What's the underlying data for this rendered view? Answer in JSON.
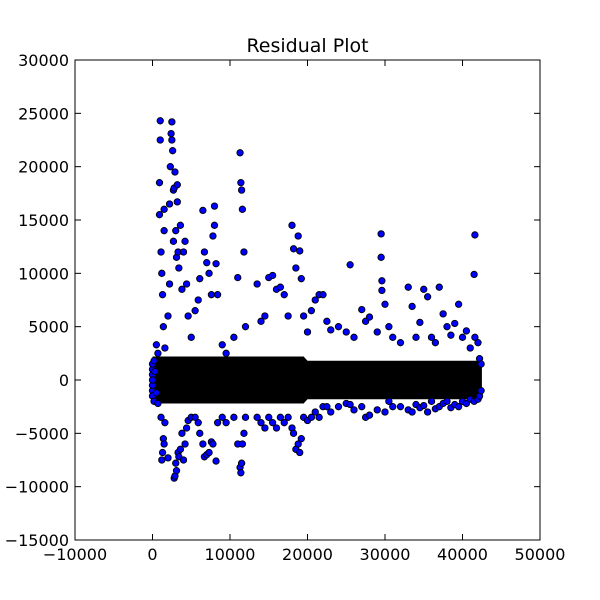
{
  "chart_data": {
    "type": "scatter",
    "title": "Residual Plot",
    "xlabel": "",
    "ylabel": "",
    "xlim": [
      -10000,
      50000
    ],
    "ylim": [
      -15000,
      30000
    ],
    "x_ticks": [
      -10000,
      0,
      10000,
      20000,
      30000,
      40000,
      50000
    ],
    "y_ticks": [
      -15000,
      -10000,
      -5000,
      0,
      5000,
      10000,
      15000,
      20000,
      25000,
      30000
    ],
    "grid": false,
    "legend": "none",
    "marker_color": "#0000ff",
    "marker_edge_color": "#000000",
    "series": [
      {
        "points": [
          [
            0,
            1000
          ],
          [
            0,
            -1000
          ],
          [
            0,
            500
          ],
          [
            0,
            -500
          ],
          [
            0,
            0
          ],
          [
            0,
            1500
          ],
          [
            0,
            -1500
          ],
          [
            200,
            1800
          ],
          [
            200,
            -2000
          ],
          [
            300,
            800
          ],
          [
            500,
            3300
          ],
          [
            500,
            -1200
          ],
          [
            700,
            2500
          ],
          [
            700,
            -2200
          ],
          [
            900,
            18500
          ],
          [
            900,
            15500
          ],
          [
            1000,
            22500
          ],
          [
            1000,
            24300
          ],
          [
            1100,
            12000
          ],
          [
            1100,
            -3500
          ],
          [
            1200,
            10000
          ],
          [
            1200,
            -7500
          ],
          [
            1300,
            8000
          ],
          [
            1300,
            -6800
          ],
          [
            1400,
            5000
          ],
          [
            1400,
            -5500
          ],
          [
            1500,
            14000
          ],
          [
            1500,
            16000
          ],
          [
            1500,
            -6000
          ],
          [
            1600,
            3000
          ],
          [
            1600,
            -4000
          ],
          [
            2000,
            6000
          ],
          [
            2000,
            -7300
          ],
          [
            2200,
            9000
          ],
          [
            2200,
            16500
          ],
          [
            2300,
            20000
          ],
          [
            2400,
            23100
          ],
          [
            2500,
            24200
          ],
          [
            2500,
            22500
          ],
          [
            2600,
            21500
          ],
          [
            2700,
            17800
          ],
          [
            2700,
            13000
          ],
          [
            2800,
            18000
          ],
          [
            2800,
            -9200
          ],
          [
            2900,
            19500
          ],
          [
            2900,
            -9000
          ],
          [
            3000,
            14000
          ],
          [
            3000,
            -7800
          ],
          [
            3100,
            11500
          ],
          [
            3100,
            -8500
          ],
          [
            3200,
            16700
          ],
          [
            3200,
            18300
          ],
          [
            3300,
            12000
          ],
          [
            3300,
            -6800
          ],
          [
            3400,
            10500
          ],
          [
            3400,
            -7200
          ],
          [
            3600,
            14500
          ],
          [
            3600,
            -6500
          ],
          [
            3800,
            8500
          ],
          [
            3800,
            -5000
          ],
          [
            4000,
            12000
          ],
          [
            4000,
            -7500
          ],
          [
            4200,
            13000
          ],
          [
            4200,
            -6000
          ],
          [
            4400,
            9000
          ],
          [
            4400,
            -4500
          ],
          [
            4600,
            6000
          ],
          [
            4600,
            -3800
          ],
          [
            5000,
            4000
          ],
          [
            5000,
            -3500
          ],
          [
            5500,
            6500
          ],
          [
            5500,
            -3500
          ],
          [
            5900,
            7500
          ],
          [
            5900,
            -4000
          ],
          [
            6100,
            9500
          ],
          [
            6100,
            -5000
          ],
          [
            6500,
            15900
          ],
          [
            6500,
            -6000
          ],
          [
            6700,
            12000
          ],
          [
            6700,
            -7200
          ],
          [
            7000,
            11000
          ],
          [
            7000,
            -7000
          ],
          [
            7300,
            10000
          ],
          [
            7300,
            -6800
          ],
          [
            7600,
            8000
          ],
          [
            7600,
            -5800
          ],
          [
            7800,
            13500
          ],
          [
            7800,
            -6000
          ],
          [
            8000,
            16300
          ],
          [
            8000,
            14500
          ],
          [
            8200,
            10900
          ],
          [
            8200,
            -7600
          ],
          [
            8400,
            8000
          ],
          [
            8400,
            -4000
          ],
          [
            9000,
            3300
          ],
          [
            9000,
            -3500
          ],
          [
            9500,
            2500
          ],
          [
            9500,
            -4000
          ],
          [
            10500,
            4000
          ],
          [
            10500,
            -3500
          ],
          [
            11000,
            9600
          ],
          [
            11000,
            -6000
          ],
          [
            11300,
            21300
          ],
          [
            11300,
            -8200
          ],
          [
            11400,
            18500
          ],
          [
            11400,
            -8700
          ],
          [
            11500,
            17800
          ],
          [
            11500,
            -7800
          ],
          [
            11600,
            16000
          ],
          [
            11600,
            -6000
          ],
          [
            11800,
            12000
          ],
          [
            11800,
            -5000
          ],
          [
            12000,
            5000
          ],
          [
            12000,
            -3500
          ],
          [
            13500,
            9000
          ],
          [
            13500,
            -3500
          ],
          [
            14000,
            5500
          ],
          [
            14000,
            -4000
          ],
          [
            14500,
            6000
          ],
          [
            14500,
            -4500
          ],
          [
            15000,
            9600
          ],
          [
            15000,
            -3500
          ],
          [
            15500,
            9800
          ],
          [
            15500,
            -4000
          ],
          [
            16000,
            8500
          ],
          [
            16000,
            -4500
          ],
          [
            16500,
            8700
          ],
          [
            16500,
            -3500
          ],
          [
            17000,
            8000
          ],
          [
            17000,
            -4000
          ],
          [
            17500,
            6000
          ],
          [
            17500,
            -3500
          ],
          [
            18000,
            14500
          ],
          [
            18000,
            -4500
          ],
          [
            18200,
            12300
          ],
          [
            18200,
            -5000
          ],
          [
            18500,
            10500
          ],
          [
            18500,
            -6500
          ],
          [
            18800,
            13500
          ],
          [
            18800,
            -6000
          ],
          [
            19000,
            12100
          ],
          [
            19000,
            -6800
          ],
          [
            19200,
            9500
          ],
          [
            19200,
            -5500
          ],
          [
            19500,
            6000
          ],
          [
            19500,
            -3500
          ],
          [
            20000,
            4500
          ],
          [
            20000,
            -3800
          ],
          [
            20500,
            6500
          ],
          [
            20500,
            -3500
          ],
          [
            21000,
            7500
          ],
          [
            21000,
            -3000
          ],
          [
            21500,
            8000
          ],
          [
            21500,
            -3500
          ],
          [
            22000,
            8000
          ],
          [
            22000,
            -2500
          ],
          [
            22500,
            5500
          ],
          [
            22500,
            -2500
          ],
          [
            23000,
            4700
          ],
          [
            23000,
            -3000
          ],
          [
            24000,
            5000
          ],
          [
            24000,
            -2500
          ],
          [
            25000,
            4500
          ],
          [
            25000,
            -2200
          ],
          [
            25500,
            10800
          ],
          [
            25500,
            -2300
          ],
          [
            26000,
            4000
          ],
          [
            26000,
            -2800
          ],
          [
            27000,
            6600
          ],
          [
            27000,
            -2500
          ],
          [
            27500,
            5500
          ],
          [
            27500,
            -3500
          ],
          [
            28000,
            5900
          ],
          [
            28000,
            -3300
          ],
          [
            29000,
            4500
          ],
          [
            29000,
            -2800
          ],
          [
            29500,
            13700
          ],
          [
            29500,
            11500
          ],
          [
            29600,
            9300
          ],
          [
            29600,
            8400
          ],
          [
            30000,
            7100
          ],
          [
            30000,
            -3000
          ],
          [
            30500,
            5000
          ],
          [
            30500,
            -2000
          ],
          [
            31000,
            4000
          ],
          [
            31000,
            -2500
          ],
          [
            32000,
            3500
          ],
          [
            32000,
            -2500
          ],
          [
            33000,
            8700
          ],
          [
            33000,
            -2800
          ],
          [
            33500,
            6900
          ],
          [
            33500,
            -3000
          ],
          [
            34000,
            4000
          ],
          [
            34000,
            -2300
          ],
          [
            34500,
            5400
          ],
          [
            34500,
            -2600
          ],
          [
            35000,
            8500
          ],
          [
            35000,
            -2400
          ],
          [
            35500,
            7800
          ],
          [
            35500,
            -3000
          ],
          [
            36000,
            4000
          ],
          [
            36000,
            -2000
          ],
          [
            36500,
            3500
          ],
          [
            36500,
            -2700
          ],
          [
            37000,
            8700
          ],
          [
            37000,
            -2500
          ],
          [
            37500,
            6200
          ],
          [
            37500,
            -2200
          ],
          [
            38000,
            5000
          ],
          [
            38000,
            -2000
          ],
          [
            38500,
            4200
          ],
          [
            38500,
            -2600
          ],
          [
            39000,
            5300
          ],
          [
            39000,
            -2300
          ],
          [
            39500,
            7100
          ],
          [
            39500,
            -2500
          ],
          [
            40000,
            4000
          ],
          [
            40000,
            -2000
          ],
          [
            40500,
            4600
          ],
          [
            40500,
            -2200
          ],
          [
            41000,
            3000
          ],
          [
            41000,
            -1800
          ],
          [
            41500,
            9900
          ],
          [
            41500,
            -2000
          ],
          [
            41600,
            13600
          ],
          [
            41600,
            4000
          ],
          [
            42000,
            3500
          ],
          [
            42000,
            -1800
          ],
          [
            42200,
            2000
          ],
          [
            42200,
            -1500
          ],
          [
            42400,
            1500
          ],
          [
            42400,
            -1000
          ]
        ]
      }
    ]
  }
}
